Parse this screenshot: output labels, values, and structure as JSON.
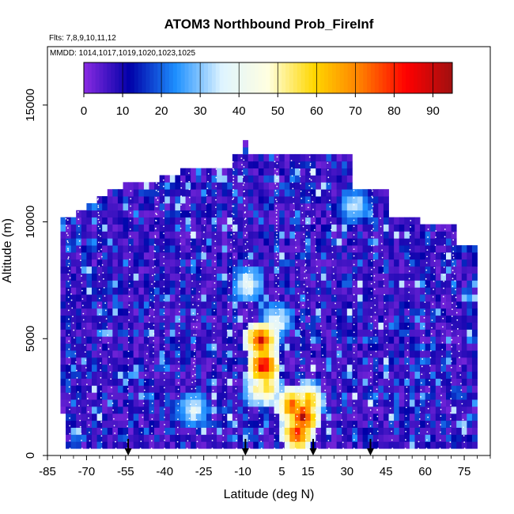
{
  "chart_data": {
    "type": "heatmap",
    "title": "ATOM3 Northbound Prob_FireInf",
    "annotations": [
      "Flts: 7,8,9,10,11,12",
      "MMDD: 1014,1017,1019,1020,1023,1025"
    ],
    "xlabel": "Latitude (deg N)",
    "ylabel": "Altitude (m)",
    "xlim": [
      -85,
      85
    ],
    "ylim": [
      0,
      17500
    ],
    "xticks": [
      -85,
      -70,
      -55,
      -40,
      -25,
      -10,
      5,
      15,
      30,
      45,
      60,
      75
    ],
    "yticks": [
      0,
      5000,
      10000,
      15000
    ],
    "xtick_labels": [
      "-85",
      "-70",
      "-55",
      "-40",
      "-25",
      "-10",
      "5",
      "15",
      "30",
      "45",
      "60",
      "75"
    ],
    "ytick_labels": [
      "0",
      "5000",
      "10000",
      "15000"
    ],
    "colorbar": {
      "range": [
        0,
        95
      ],
      "ticks": [
        0,
        10,
        20,
        30,
        40,
        50,
        60,
        70,
        80,
        90
      ],
      "tick_labels": [
        "0",
        "10",
        "20",
        "30",
        "40",
        "50",
        "60",
        "70",
        "80",
        "90"
      ],
      "colors": [
        "#8a2be2",
        "#0000a8",
        "#1e90ff",
        "#dff4ff",
        "#ffffe0",
        "#ffd700",
        "#ff7f00",
        "#ff0000",
        "#a01010"
      ]
    },
    "flight_markers_lat": [
      -54,
      -9,
      17,
      39
    ],
    "hotspots": [
      {
        "lat": -4,
        "alt": 4800,
        "value": 85
      },
      {
        "lat": -3,
        "alt": 3700,
        "value": 90
      },
      {
        "lat": -2,
        "alt": 2800,
        "value": 60
      },
      {
        "lat": -5,
        "alt": 2700,
        "value": 50
      },
      {
        "lat": 8,
        "alt": 2000,
        "value": 78
      },
      {
        "lat": 12,
        "alt": 1500,
        "value": 90
      },
      {
        "lat": 10,
        "alt": 800,
        "value": 82
      },
      {
        "lat": 14,
        "alt": 2200,
        "value": 65
      },
      {
        "lat": -9,
        "alt": 7200,
        "value": 40
      },
      {
        "lat": 2,
        "alt": 5600,
        "value": 40
      },
      {
        "lat": 32,
        "alt": 10600,
        "value": 35
      },
      {
        "lat": -30,
        "alt": 1800,
        "value": 38
      }
    ]
  }
}
